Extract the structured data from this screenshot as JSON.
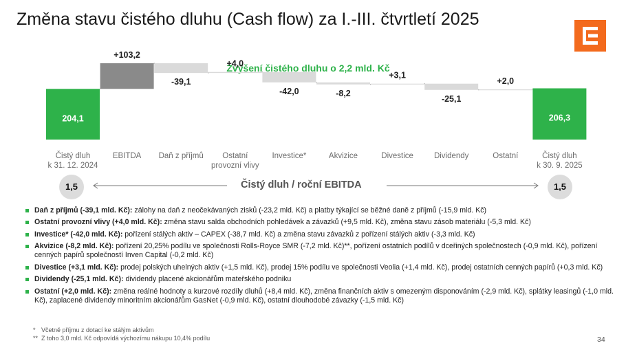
{
  "title": "Změna stavu čistého dluhu (Cash flow) za I.-III. čtvrtletí 2025",
  "colors": {
    "positive": "#2eb24a",
    "negative": "#dadada",
    "ebitda": "#8a8a8a",
    "logo": "#f36a1d",
    "bullet": "#2eb24a"
  },
  "chart_data": {
    "type": "bar",
    "subtype": "waterfall",
    "highlight": "Zvýšení čistého dluhu o 2,2 mld. Kč",
    "categories": [
      "Čistý dluh\nk 31. 12. 2024",
      "EBITDA",
      "Daň z příjmů",
      "Ostatní\nprovozní vlivy",
      "Investice*",
      "Akvizice",
      "Divestice",
      "Dividendy",
      "Ostatní",
      "Čistý dluh\nk 30. 9. 2025"
    ],
    "values": [
      204.1,
      103.2,
      -39.1,
      4.0,
      -42.0,
      -8.2,
      3.1,
      -25.1,
      2.0,
      206.3
    ],
    "value_labels": [
      "204,1",
      "+103,2",
      "-39,1",
      "+4,0",
      "-42,0",
      "-8,2",
      "+3,1",
      "-25,1",
      "+2,0",
      "206,3"
    ],
    "kinds": [
      "total",
      "ebitda",
      "step",
      "step",
      "step",
      "step",
      "step",
      "step",
      "step",
      "total"
    ],
    "grid": false,
    "axis_visible": false
  },
  "ratio": {
    "label": "Čistý dluh / roční EBITDA",
    "start": "1,5",
    "end": "1,5"
  },
  "bullets": [
    {
      "head": "Daň z příjmů (-39,1 mld. Kč):",
      "text": " zálohy na daň z neočekávaných zisků (-23,2 mld. Kč) a platby týkající se běžné daně z příjmů (-15,9 mld. Kč)"
    },
    {
      "head": "Ostatní provozní vlivy (+4,0 mld. Kč):",
      "text": " změna stavu salda obchodních pohledávek a závazků (+9,5 mld. Kč), změna stavu zásob materiálu (-5,3 mld. Kč)"
    },
    {
      "head": "Investice* (-42,0 mld. Kč):",
      "text": " pořízení stálých aktiv – CAPEX (-38,7 mld. Kč) a změna stavu závazků z pořízení stálých aktiv (-3,3 mld. Kč)"
    },
    {
      "head": "Akvizice (-8,2 mld. Kč):",
      "text": " pořízení 20,25% podílu ve společnosti Rolls-Royce SMR (-7,2 mld. Kč)**, pořízení ostatních podílů v dceřiných společnostech (-0,9 mld. Kč), pořízení cenných papírů společností Inven Capital (-0,2 mld. Kč)"
    },
    {
      "head": "Divestice (+3,1 mld. Kč):",
      "text": " prodej polských uhelných aktiv (+1,5 mld. Kč), prodej 15% podílu ve společnosti Veolia (+1,4 mld. Kč), prodej ostatních cenných papírů (+0,3 mld. Kč)"
    },
    {
      "head": "Dividendy (-25,1 mld. Kč):",
      "text": " dividendy placené akcionářům mateřského podniku"
    },
    {
      "head": "Ostatní (+2,0 mld. Kč):",
      "text": " změna reálné hodnoty a kurzové rozdíly dluhů (+8,4 mld. Kč), změna finančních aktiv s omezeným disponováním (-2,9 mld. Kč), splátky leasingů (-1,0 mld. Kč), zaplacené dividendy minoritním akcionářům GasNet (-0,9 mld. Kč), ostatní dlouhodobé závazky (-1,5 mld. Kč)"
    }
  ],
  "footnotes": [
    {
      "mark": "*",
      "text": "Včetně příjmu z dotací ke stálým aktivům"
    },
    {
      "mark": "**",
      "text": "Z toho 3,0 mld. Kč odpovídá výchozímu nákupu 10,4% podílu"
    }
  ],
  "page_number": "34"
}
